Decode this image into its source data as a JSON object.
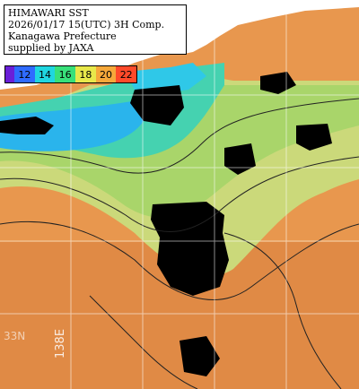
{
  "title": {
    "line1": "HIMAWARI SST",
    "line2": "2026/01/17 15(UTC) 3H Comp.",
    "line3": "Kanagawa Prefecture",
    "line4": "supplied by JAXA"
  },
  "legend": {
    "labels": [
      "12",
      "14",
      "16",
      "18",
      "20",
      "22"
    ],
    "colors": [
      "#6a1fd8",
      "#2f6bff",
      "#1fd6e0",
      "#38e07a",
      "#e8e84a",
      "#f6a83a",
      "#ff4a2a"
    ]
  },
  "grid": {
    "longitude_label": "138E",
    "latitude_label": "33N"
  },
  "colors": {
    "land": "#ffffff",
    "cloud_mask": "#000000",
    "warm_sea": "#e8974e",
    "mid_sea": "#b8d97a",
    "cool_sea": "#3fd7c6",
    "cold_sea": "#28b8e8"
  }
}
